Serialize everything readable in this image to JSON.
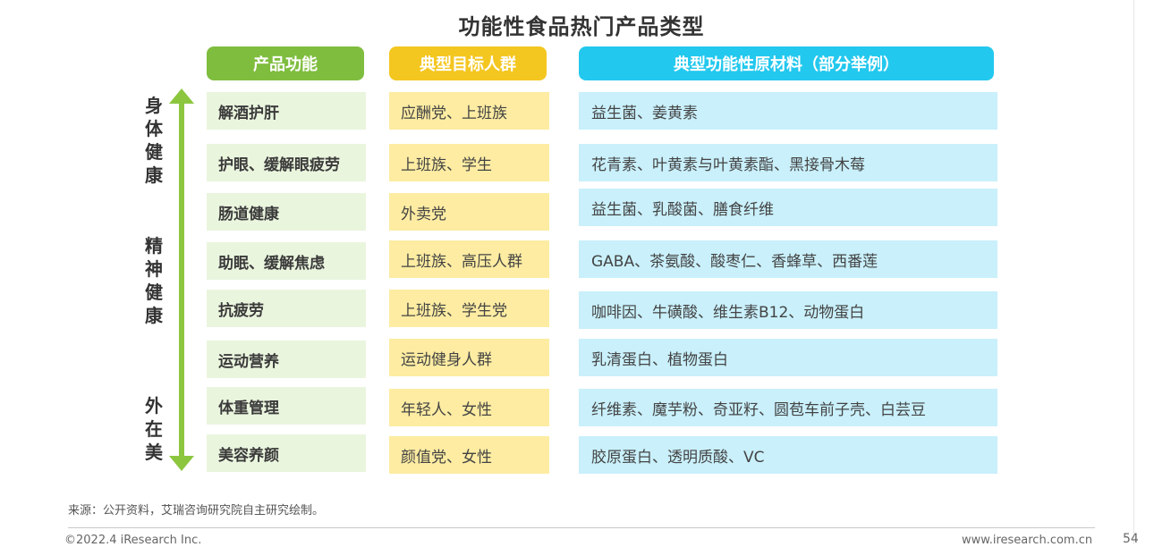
{
  "title": "功能性食品热门产品类型",
  "headers": {
    "function": "产品功能",
    "target": "典型目标人群",
    "materials": "典型功能性原材料（部分举例）"
  },
  "categories": {
    "body": "身体健康",
    "mind": "精神健康",
    "beauty": "外在美"
  },
  "rows": [
    {
      "function": "解酒护肝",
      "target": "应酬党、上班族",
      "materials": "益生菌、姜黄素"
    },
    {
      "function": "护眼、缓解眼疲劳",
      "target": "上班族、学生",
      "materials": "花青素、叶黄素与叶黄素酯、黑接骨木莓"
    },
    {
      "function": "肠道健康",
      "target": "外卖党",
      "materials": "益生菌、乳酸菌、膳食纤维"
    },
    {
      "function": "助眠、缓解焦虑",
      "target": "上班族、高压人群",
      "materials": "GABA、茶氨酸、酸枣仁、香蜂草、西番莲"
    },
    {
      "function": "抗疲劳",
      "target": "上班族、学生党",
      "materials": "咖啡因、牛磺酸、维生素B12、动物蛋白"
    },
    {
      "function": "运动营养",
      "target": "运动健身人群",
      "materials": "乳清蛋白、植物蛋白"
    },
    {
      "function": "体重管理",
      "target": "年轻人、女性",
      "materials": "纤维素、魔芋粉、奇亚籽、圆苞车前子壳、白芸豆"
    },
    {
      "function": "美容养颜",
      "target": "颜值党、女性",
      "materials": "胶原蛋白、透明质酸、VC"
    }
  ],
  "source": "来源：公开资料，艾瑞咨询研究院自主研究绘制。",
  "footer": {
    "copyright": "©2022.4 iResearch Inc.",
    "website": "www.iresearch.com.cn",
    "page": "54"
  },
  "colors": {
    "function_header": "#7fbd3f",
    "target_header": "#f4c620",
    "materials_header": "#23c8ee",
    "arrow": "#8cc63f"
  }
}
